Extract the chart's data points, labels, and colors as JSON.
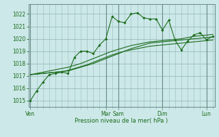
{
  "title": "",
  "xlabel": "Pression niveau de la mer( hPa )",
  "ylabel": "",
  "bg_color": "#cce8e8",
  "grid_color": "#99bbbb",
  "line_color": "#1a6b1a",
  "ylim": [
    1014.5,
    1022.8
  ],
  "day_labels": [
    "Ven",
    "Mar",
    "Sam",
    "Dim",
    "Lun"
  ],
  "day_x": [
    0,
    12,
    14,
    21,
    28
  ],
  "total_points": 30,
  "series": [
    [
      1015.0,
      1015.8,
      1016.5,
      1017.1,
      1017.2,
      1017.3,
      1017.2,
      1018.5,
      1019.0,
      1019.0,
      1018.8,
      1019.5,
      1020.0,
      1021.8,
      1021.4,
      1021.3,
      1022.0,
      1022.1,
      1021.7,
      1021.6,
      1021.6,
      1020.7,
      1021.5,
      1019.9,
      1019.1,
      1019.8,
      1020.3,
      1020.5,
      1019.9,
      1020.2
    ],
    [
      1017.1,
      1017.15,
      1017.2,
      1017.25,
      1017.3,
      1017.35,
      1017.4,
      1017.55,
      1017.7,
      1017.85,
      1018.0,
      1018.2,
      1018.4,
      1018.6,
      1018.8,
      1019.0,
      1019.2,
      1019.35,
      1019.5,
      1019.65,
      1019.7,
      1019.75,
      1019.8,
      1019.85,
      1019.9,
      1019.95,
      1020.0,
      1020.05,
      1020.1,
      1020.15
    ],
    [
      1017.1,
      1017.2,
      1017.3,
      1017.4,
      1017.5,
      1017.6,
      1017.7,
      1017.85,
      1018.0,
      1018.2,
      1018.4,
      1018.6,
      1018.8,
      1019.0,
      1019.15,
      1019.3,
      1019.45,
      1019.55,
      1019.65,
      1019.75,
      1019.8,
      1019.85,
      1019.9,
      1019.95,
      1020.0,
      1020.1,
      1020.2,
      1020.25,
      1020.3,
      1020.35
    ],
    [
      1017.1,
      1017.15,
      1017.2,
      1017.25,
      1017.3,
      1017.35,
      1017.45,
      1017.6,
      1017.75,
      1017.9,
      1018.1,
      1018.3,
      1018.5,
      1018.7,
      1018.85,
      1019.0,
      1019.1,
      1019.2,
      1019.3,
      1019.4,
      1019.45,
      1019.5,
      1019.55,
      1019.6,
      1019.65,
      1019.7,
      1019.75,
      1019.8,
      1019.85,
      1019.9
    ]
  ],
  "yticks": [
    1015,
    1016,
    1017,
    1018,
    1019,
    1020,
    1021,
    1022
  ],
  "minor_xtick_step": 1,
  "vline_day_x": [
    0,
    12,
    14,
    21,
    28
  ]
}
